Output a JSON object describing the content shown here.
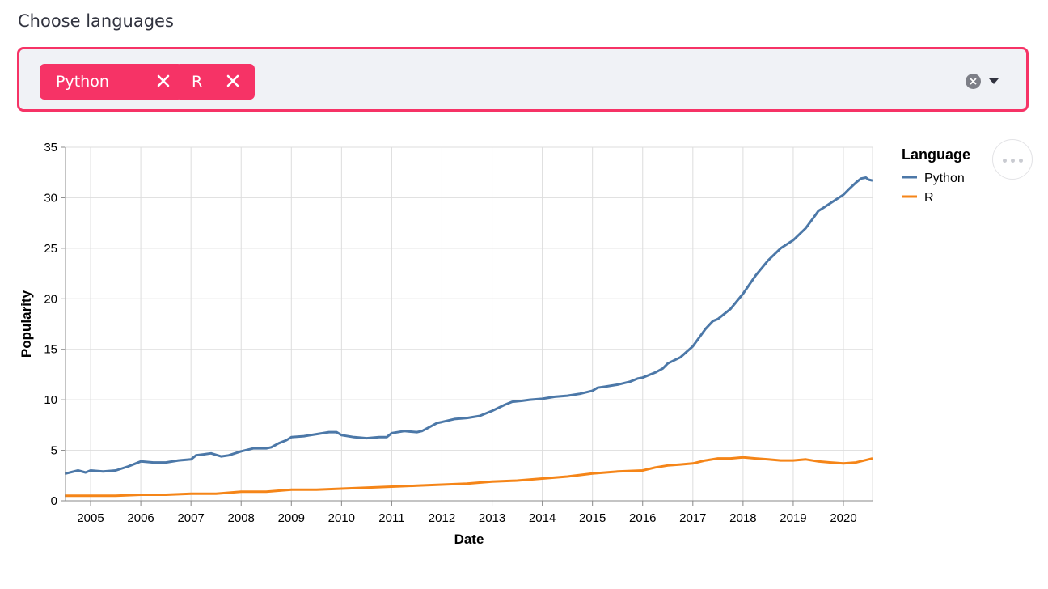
{
  "multiselect": {
    "label": "Choose languages",
    "selected": [
      {
        "label": "Python"
      },
      {
        "label": "R"
      }
    ],
    "clear_icon": "clear-circle-icon",
    "dropdown_icon": "caret-down-icon"
  },
  "chart_menu": {
    "icon": "ellipsis-icon"
  },
  "colors": {
    "accent": "#f63366",
    "python": "#4c78a8",
    "r": "#f58518"
  },
  "chart_data": {
    "type": "line",
    "xlabel": "Date",
    "ylabel": "Popularity",
    "xlim": [
      2004.5,
      2020.58
    ],
    "ylim": [
      0,
      35
    ],
    "x_ticks": [
      "2005",
      "2006",
      "2007",
      "2008",
      "2009",
      "2010",
      "2011",
      "2012",
      "2013",
      "2014",
      "2015",
      "2016",
      "2017",
      "2018",
      "2019",
      "2020"
    ],
    "y_ticks": [
      "0",
      "5",
      "10",
      "15",
      "20",
      "25",
      "30",
      "35"
    ],
    "grid": true,
    "legend": {
      "title": "Language",
      "position": "right"
    },
    "series": [
      {
        "name": "Python",
        "x": [
          2004.5,
          2004.75,
          2004.9,
          2005.0,
          2005.25,
          2005.5,
          2005.75,
          2005.9,
          2006.0,
          2006.25,
          2006.5,
          2006.75,
          2007.0,
          2007.1,
          2007.25,
          2007.4,
          2007.6,
          2007.75,
          2008.0,
          2008.25,
          2008.5,
          2008.6,
          2008.75,
          2008.9,
          2009.0,
          2009.25,
          2009.5,
          2009.75,
          2009.9,
          2010.0,
          2010.25,
          2010.5,
          2010.75,
          2010.9,
          2011.0,
          2011.25,
          2011.5,
          2011.6,
          2011.75,
          2011.9,
          2012.0,
          2012.25,
          2012.5,
          2012.75,
          2013.0,
          2013.25,
          2013.4,
          2013.6,
          2013.75,
          2014.0,
          2014.25,
          2014.5,
          2014.75,
          2015.0,
          2015.1,
          2015.25,
          2015.5,
          2015.75,
          2015.9,
          2016.0,
          2016.25,
          2016.4,
          2016.5,
          2016.75,
          2017.0,
          2017.25,
          2017.4,
          2017.5,
          2017.75,
          2018.0,
          2018.25,
          2018.5,
          2018.75,
          2019.0,
          2019.25,
          2019.4,
          2019.5,
          2019.6,
          2019.75,
          2020.0,
          2020.1,
          2020.25,
          2020.35,
          2020.45,
          2020.5,
          2020.58
        ],
        "values": [
          2.7,
          3.0,
          2.8,
          3.0,
          2.9,
          3.0,
          3.4,
          3.7,
          3.9,
          3.8,
          3.8,
          4.0,
          4.1,
          4.5,
          4.6,
          4.7,
          4.4,
          4.5,
          4.9,
          5.2,
          5.2,
          5.3,
          5.7,
          6.0,
          6.3,
          6.4,
          6.6,
          6.8,
          6.8,
          6.5,
          6.3,
          6.2,
          6.3,
          6.3,
          6.7,
          6.9,
          6.8,
          6.9,
          7.3,
          7.7,
          7.8,
          8.1,
          8.2,
          8.4,
          8.9,
          9.5,
          9.8,
          9.9,
          10.0,
          10.1,
          10.3,
          10.4,
          10.6,
          10.9,
          11.2,
          11.3,
          11.5,
          11.8,
          12.1,
          12.2,
          12.7,
          13.1,
          13.6,
          14.2,
          15.3,
          17.0,
          17.8,
          18.0,
          19.0,
          20.5,
          22.3,
          23.8,
          25.0,
          25.8,
          27.0,
          28.0,
          28.7,
          29.0,
          29.5,
          30.3,
          30.8,
          31.5,
          31.9,
          32.0,
          31.8,
          31.7
        ]
      },
      {
        "name": "R",
        "x": [
          2004.5,
          2005.0,
          2005.5,
          2006.0,
          2006.5,
          2007.0,
          2007.5,
          2008.0,
          2008.5,
          2009.0,
          2009.5,
          2010.0,
          2010.5,
          2011.0,
          2011.5,
          2012.0,
          2012.5,
          2013.0,
          2013.5,
          2014.0,
          2014.5,
          2015.0,
          2015.5,
          2016.0,
          2016.25,
          2016.5,
          2016.75,
          2017.0,
          2017.25,
          2017.5,
          2017.75,
          2018.0,
          2018.25,
          2018.5,
          2018.75,
          2019.0,
          2019.25,
          2019.5,
          2019.75,
          2020.0,
          2020.25,
          2020.5,
          2020.58
        ],
        "values": [
          0.5,
          0.5,
          0.5,
          0.6,
          0.6,
          0.7,
          0.7,
          0.9,
          0.9,
          1.1,
          1.1,
          1.2,
          1.3,
          1.4,
          1.5,
          1.6,
          1.7,
          1.9,
          2.0,
          2.2,
          2.4,
          2.7,
          2.9,
          3.0,
          3.3,
          3.5,
          3.6,
          3.7,
          4.0,
          4.2,
          4.2,
          4.3,
          4.2,
          4.1,
          4.0,
          4.0,
          4.1,
          3.9,
          3.8,
          3.7,
          3.8,
          4.1,
          4.2
        ]
      }
    ]
  }
}
